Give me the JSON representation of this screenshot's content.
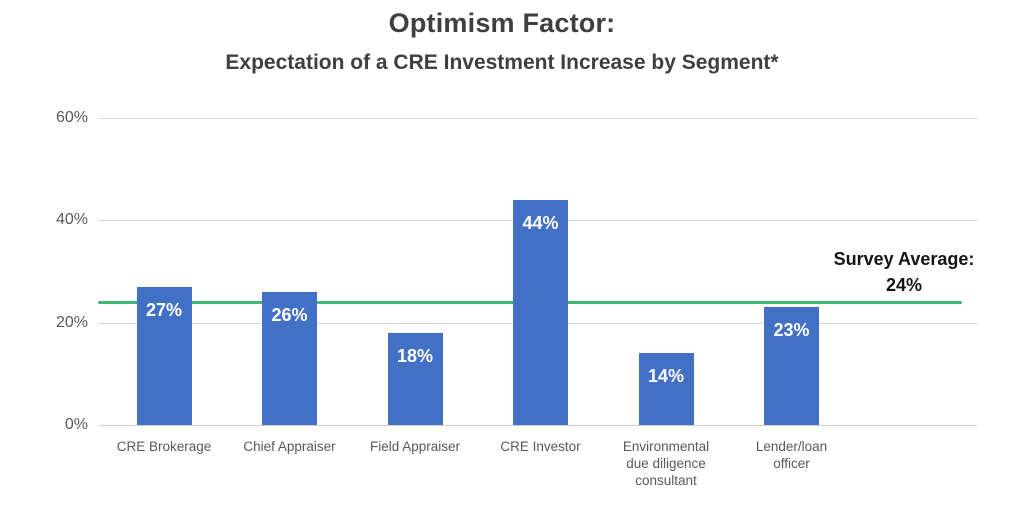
{
  "colors": {
    "background": "#FFFFFF",
    "bar": "#4170C4",
    "average_line": "#3FB871",
    "gridline": "#D6D6D6",
    "axis_text": "#595959",
    "title_text": "#3F3F3F",
    "annotation_text": "#141414",
    "bar_label_text": "#FFFFFF"
  },
  "chart_data": {
    "type": "bar",
    "title": "Optimism Factor:",
    "subtitle": "Expectation of a CRE Investment Increase by Segment*",
    "categories": [
      "CRE Brokerage",
      "Chief Appraiser",
      "Field Appraiser",
      "CRE Investor",
      "Environmental due diligence consultant",
      "Lender/loan officer"
    ],
    "category_lines": [
      [
        "CRE Brokerage"
      ],
      [
        "Chief Appraiser"
      ],
      [
        "Field Appraiser"
      ],
      [
        "CRE Investor"
      ],
      [
        "Environmental",
        "due diligence",
        "consultant"
      ],
      [
        "Lender/loan",
        "officer"
      ]
    ],
    "values": [
      27,
      26,
      18,
      44,
      14,
      23
    ],
    "data_labels": [
      "27%",
      "26%",
      "18%",
      "44%",
      "14%",
      "23%"
    ],
    "y_tick_values": [
      0,
      20,
      40,
      60
    ],
    "y_tick_labels": [
      "0%",
      "20%",
      "40%",
      "60%"
    ],
    "ylim": [
      0,
      60
    ],
    "grid": true,
    "legend_position": "none",
    "xlabel": "",
    "ylabel": "",
    "average_line": {
      "value": 24,
      "label": "Survey Average:",
      "value_label": "24%"
    }
  }
}
